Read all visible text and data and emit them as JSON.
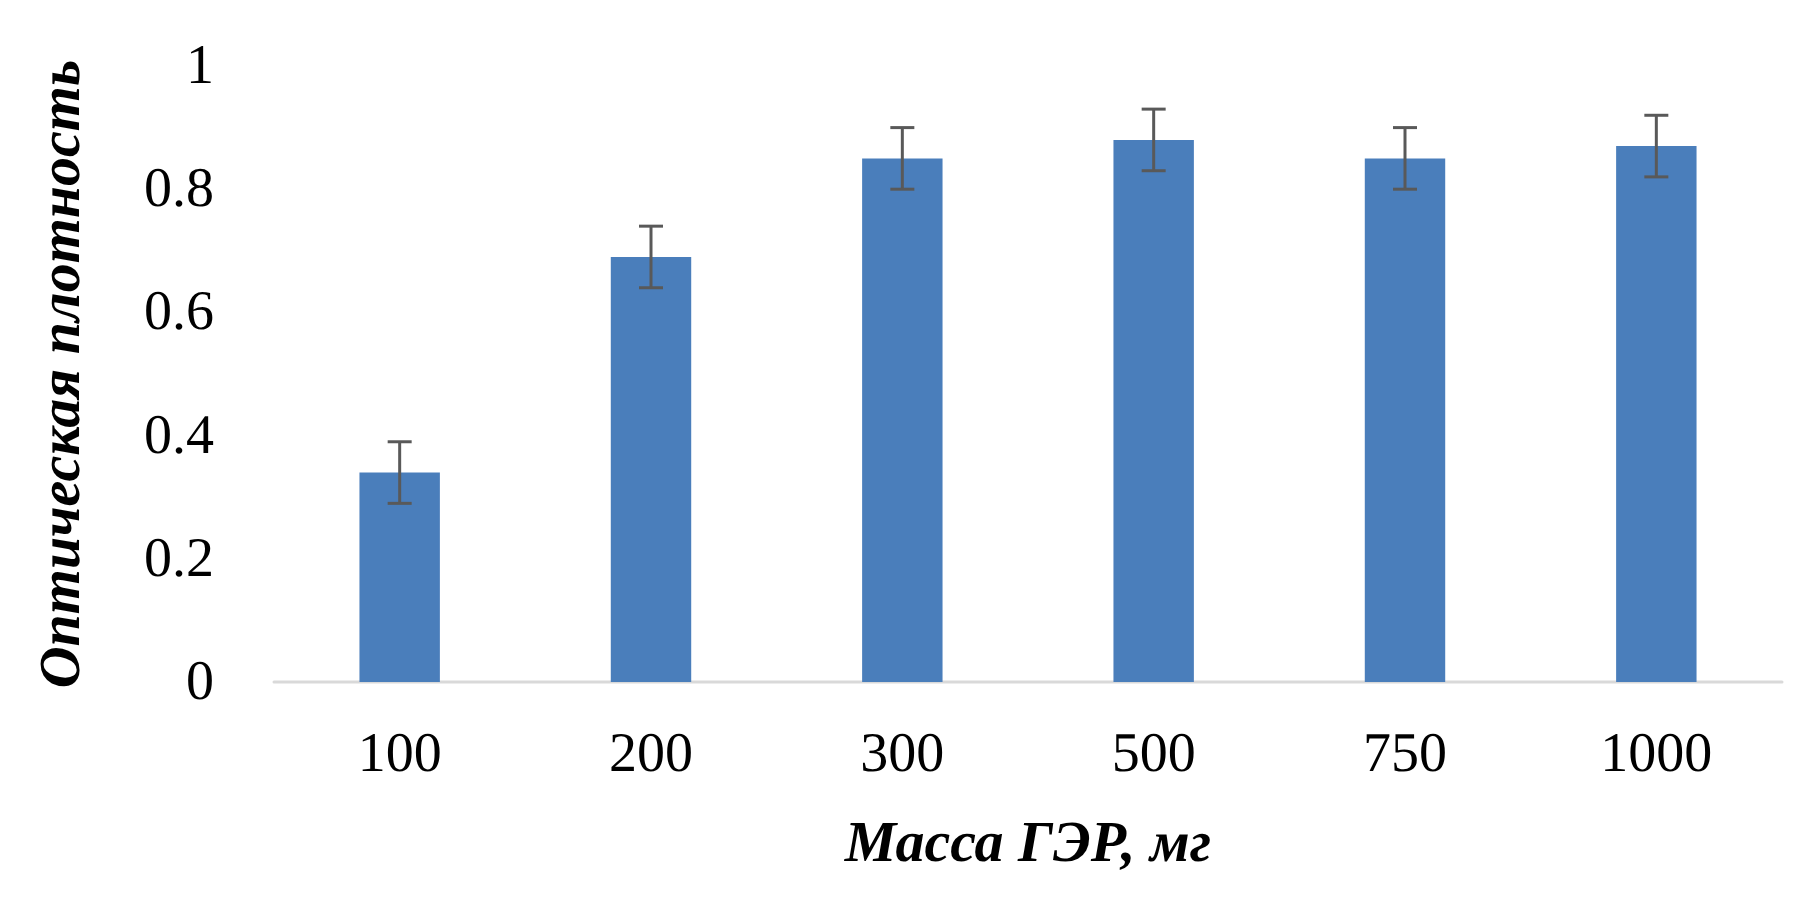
{
  "chart_data": {
    "type": "bar",
    "xlabel": "Масса ГЭР, мг",
    "ylabel": "Оптическая плотность",
    "categories": [
      "100",
      "200",
      "300",
      "500",
      "750",
      "1000"
    ],
    "values": [
      0.34,
      0.69,
      0.85,
      0.88,
      0.85,
      0.87
    ],
    "errors": [
      0.05,
      0.05,
      0.05,
      0.05,
      0.05,
      0.05
    ],
    "color": "#4a7ebb",
    "ylim": [
      0,
      1
    ],
    "yticks": [
      0,
      0.2,
      0.4,
      0.6,
      0.8,
      1
    ],
    "grid": false
  }
}
